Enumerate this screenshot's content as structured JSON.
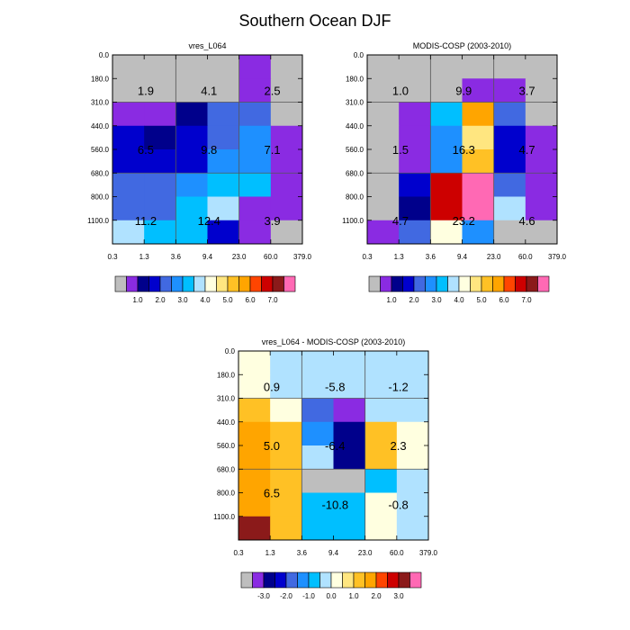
{
  "figure": {
    "title": "Southern Ocean DJF"
  },
  "palettes": {
    "abs": [
      "#bebebe",
      "#8a2be2",
      "#00008b",
      "#0000cd",
      "#4169e1",
      "#1e90ff",
      "#00bfff",
      "#b0e2ff",
      "#ffffe0",
      "#ffe680",
      "#ffc125",
      "#ffa500",
      "#ff4500",
      "#cd0000",
      "#8b1a1a",
      "#ff69b4"
    ],
    "diff": [
      "#bebebe",
      "#8a2be2",
      "#00008b",
      "#0000cd",
      "#4169e1",
      "#1e90ff",
      "#00bfff",
      "#b0e2ff",
      "#ffffe0",
      "#ffe680",
      "#ffc125",
      "#ffa500",
      "#ff4500",
      "#cd0000",
      "#8b1a1a",
      "#ff69b4"
    ]
  },
  "chart_data": [
    {
      "type": "heatmap",
      "title": "vres_L064",
      "x_ticks": [
        "0.3",
        "1.3",
        "3.6",
        "9.4",
        "23.0",
        "60.0",
        "379.0"
      ],
      "y_ticks": [
        "0.0",
        "180.0",
        "310.0",
        "440.0",
        "560.0",
        "680.0",
        "800.0",
        "1100.0"
      ],
      "cell_color_index": [
        [
          0,
          0,
          0,
          0,
          1,
          0
        ],
        [
          0,
          0,
          0,
          0,
          1,
          0
        ],
        [
          1,
          1,
          2,
          4,
          4,
          0
        ],
        [
          3,
          2,
          3,
          4,
          5,
          1
        ],
        [
          3,
          3,
          3,
          5,
          5,
          1
        ],
        [
          4,
          4,
          5,
          6,
          6,
          1
        ],
        [
          4,
          4,
          6,
          7,
          1,
          1
        ],
        [
          7,
          6,
          6,
          3,
          1,
          0
        ]
      ],
      "annotations": [
        {
          "value": "1.9",
          "col": 0.5,
          "row": 1.5
        },
        {
          "value": "4.1",
          "col": 2.5,
          "row": 1.5
        },
        {
          "value": "2.5",
          "col": 4.5,
          "row": 1.5
        },
        {
          "value": "6.5",
          "col": 0.5,
          "row": 4.0
        },
        {
          "value": "9.8",
          "col": 2.5,
          "row": 4.0
        },
        {
          "value": "7.1",
          "col": 4.5,
          "row": 4.0
        },
        {
          "value": "11.2",
          "col": 0.5,
          "row": 7.0
        },
        {
          "value": "12.4",
          "col": 2.5,
          "row": 7.0
        },
        {
          "value": "3.9",
          "col": 4.5,
          "row": 7.0
        }
      ],
      "colorbar": {
        "palette": "abs",
        "labels": [
          "1.0",
          "2.0",
          "3.0",
          "4.0",
          "5.0",
          "6.0",
          "7.0"
        ]
      }
    },
    {
      "type": "heatmap",
      "title": "MODIS-COSP (2003-2010)",
      "x_ticks": [
        "0.3",
        "1.3",
        "3.6",
        "9.4",
        "23.0",
        "60.0",
        "379.0"
      ],
      "y_ticks": [
        "0.0",
        "180.0",
        "310.0",
        "440.0",
        "560.0",
        "680.0",
        "800.0",
        "1100.0"
      ],
      "cell_color_index": [
        [
          0,
          0,
          0,
          0,
          0,
          0
        ],
        [
          0,
          0,
          0,
          1,
          1,
          0
        ],
        [
          0,
          1,
          6,
          11,
          4,
          0
        ],
        [
          0,
          1,
          5,
          9,
          3,
          1
        ],
        [
          0,
          1,
          5,
          10,
          3,
          1
        ],
        [
          0,
          3,
          13,
          15,
          4,
          1
        ],
        [
          0,
          2,
          13,
          15,
          7,
          1
        ],
        [
          1,
          4,
          8,
          5,
          0,
          0
        ]
      ],
      "annotations": [
        {
          "value": "1.0",
          "col": 0.5,
          "row": 1.5
        },
        {
          "value": "9.9",
          "col": 2.5,
          "row": 1.5
        },
        {
          "value": "3.7",
          "col": 4.5,
          "row": 1.5
        },
        {
          "value": "1.5",
          "col": 0.5,
          "row": 4.0
        },
        {
          "value": "16.3",
          "col": 2.5,
          "row": 4.0
        },
        {
          "value": "4.7",
          "col": 4.5,
          "row": 4.0
        },
        {
          "value": "4.7",
          "col": 0.5,
          "row": 7.0
        },
        {
          "value": "23.2",
          "col": 2.5,
          "row": 7.0
        },
        {
          "value": "4.6",
          "col": 4.5,
          "row": 7.0
        }
      ],
      "colorbar": {
        "palette": "abs",
        "labels": [
          "1.0",
          "2.0",
          "3.0",
          "4.0",
          "5.0",
          "6.0",
          "7.0"
        ]
      }
    },
    {
      "type": "heatmap",
      "title": "vres_L064 - MODIS-COSP (2003-2010)",
      "x_ticks": [
        "0.3",
        "1.3",
        "3.6",
        "9.4",
        "23.0",
        "60.0",
        "379.0"
      ],
      "y_ticks": [
        "0.0",
        "180.0",
        "310.0",
        "440.0",
        "560.0",
        "680.0",
        "800.0",
        "1100.0"
      ],
      "cell_color_index": [
        [
          8,
          7,
          7,
          7,
          7,
          7
        ],
        [
          8,
          7,
          7,
          7,
          7,
          7
        ],
        [
          10,
          8,
          4,
          1,
          7,
          7
        ],
        [
          11,
          10,
          5,
          2,
          10,
          8
        ],
        [
          11,
          10,
          7,
          2,
          10,
          8
        ],
        [
          11,
          10,
          0,
          0,
          6,
          7
        ],
        [
          11,
          10,
          6,
          6,
          8,
          7
        ],
        [
          14,
          10,
          6,
          6,
          8,
          7
        ]
      ],
      "annotations": [
        {
          "value": "0.9",
          "col": 0.5,
          "row": 1.5
        },
        {
          "value": "-5.8",
          "col": 2.5,
          "row": 1.5
        },
        {
          "value": "-1.2",
          "col": 4.5,
          "row": 1.5
        },
        {
          "value": "5.0",
          "col": 0.5,
          "row": 4.0
        },
        {
          "value": "-6.4",
          "col": 2.5,
          "row": 4.0
        },
        {
          "value": "2.3",
          "col": 4.5,
          "row": 4.0
        },
        {
          "value": "6.5",
          "col": 0.5,
          "row": 6.0
        },
        {
          "value": "-10.8",
          "col": 2.5,
          "row": 6.5
        },
        {
          "value": "-0.8",
          "col": 4.5,
          "row": 6.5
        }
      ],
      "colorbar": {
        "palette": "diff",
        "labels": [
          "-3.0",
          "-2.0",
          "-1.0",
          "0.0",
          "1.0",
          "2.0",
          "3.0"
        ]
      }
    }
  ]
}
